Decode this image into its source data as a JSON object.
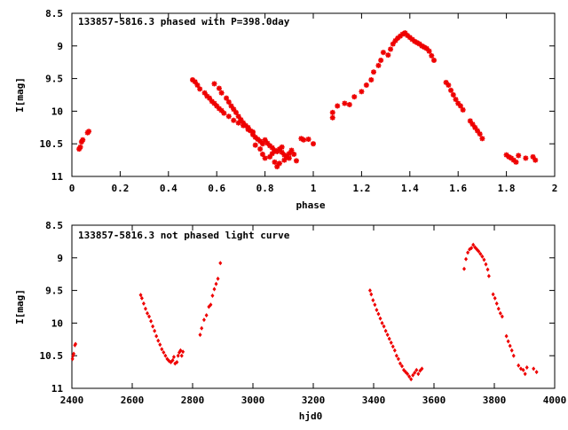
{
  "chart_data": [
    {
      "type": "scatter",
      "title": "133857-5816.3 phased with P=398.0day",
      "xlabel": "phase",
      "ylabel": "I[mag]",
      "xlim": [
        0,
        2
      ],
      "ylim": [
        11,
        8.5
      ],
      "y_inverted": true,
      "x_ticks": [
        0,
        0.2,
        0.4,
        0.6,
        0.8,
        1,
        1.2,
        1.4,
        1.6,
        1.8,
        2
      ],
      "x_tick_labels": [
        "0",
        "0.2",
        "0.4",
        "0.6",
        "0.8",
        "1",
        "1.2",
        "1.4",
        "1.6",
        "1.8",
        "2"
      ],
      "y_ticks": [
        8.5,
        9,
        9.5,
        10,
        10.5,
        11
      ],
      "y_tick_labels": [
        "8.5",
        "9",
        "9.5",
        "10",
        "10.5",
        "11"
      ],
      "grid": false,
      "color": "#ee0000",
      "marker": "asterisk",
      "series": [
        {
          "points": [
            [
              0.03,
              10.58
            ],
            [
              0.035,
              10.55
            ],
            [
              0.04,
              10.47
            ],
            [
              0.045,
              10.44
            ],
            [
              0.065,
              10.33
            ],
            [
              0.07,
              10.31
            ],
            [
              0.5,
              9.52
            ],
            [
              0.51,
              9.55
            ],
            [
              0.52,
              9.6
            ],
            [
              0.53,
              9.66
            ],
            [
              0.55,
              9.72
            ],
            [
              0.56,
              9.77
            ],
            [
              0.57,
              9.8
            ],
            [
              0.58,
              9.85
            ],
            [
              0.59,
              9.88
            ],
            [
              0.6,
              9.92
            ],
            [
              0.61,
              9.96
            ],
            [
              0.62,
              9.99
            ],
            [
              0.63,
              10.03
            ],
            [
              0.59,
              9.58
            ],
            [
              0.61,
              9.65
            ],
            [
              0.62,
              9.72
            ],
            [
              0.64,
              9.8
            ],
            [
              0.65,
              9.86
            ],
            [
              0.66,
              9.92
            ],
            [
              0.67,
              9.97
            ],
            [
              0.68,
              10.02
            ],
            [
              0.69,
              10.08
            ],
            [
              0.7,
              10.13
            ],
            [
              0.71,
              10.18
            ],
            [
              0.72,
              10.22
            ],
            [
              0.73,
              10.25
            ],
            [
              0.65,
              10.08
            ],
            [
              0.67,
              10.14
            ],
            [
              0.69,
              10.18
            ],
            [
              0.71,
              10.22
            ],
            [
              0.73,
              10.28
            ],
            [
              0.75,
              10.32
            ],
            [
              0.74,
              10.3
            ],
            [
              0.75,
              10.36
            ],
            [
              0.76,
              10.4
            ],
            [
              0.77,
              10.43
            ],
            [
              0.78,
              10.46
            ],
            [
              0.79,
              10.5
            ],
            [
              0.8,
              10.44
            ],
            [
              0.81,
              10.49
            ],
            [
              0.82,
              10.53
            ],
            [
              0.83,
              10.56
            ],
            [
              0.84,
              10.6
            ],
            [
              0.85,
              10.62
            ],
            [
              0.86,
              10.58
            ],
            [
              0.87,
              10.63
            ],
            [
              0.88,
              10.67
            ],
            [
              0.89,
              10.7
            ],
            [
              0.9,
              10.65
            ],
            [
              0.91,
              10.6
            ],
            [
              0.78,
              10.58
            ],
            [
              0.79,
              10.66
            ],
            [
              0.8,
              10.72
            ],
            [
              0.82,
              10.7
            ],
            [
              0.84,
              10.78
            ],
            [
              0.85,
              10.85
            ],
            [
              0.86,
              10.8
            ],
            [
              0.88,
              10.75
            ],
            [
              0.9,
              10.72
            ],
            [
              0.92,
              10.66
            ],
            [
              0.93,
              10.76
            ],
            [
              0.95,
              10.42
            ],
            [
              0.96,
              10.44
            ],
            [
              0.98,
              10.43
            ],
            [
              1.0,
              10.5
            ],
            [
              0.76,
              10.52
            ],
            [
              0.83,
              10.65
            ],
            [
              0.87,
              10.55
            ],
            [
              1.08,
              10.02
            ],
            [
              1.08,
              10.1
            ],
            [
              1.1,
              9.92
            ],
            [
              1.13,
              9.88
            ],
            [
              1.15,
              9.9
            ],
            [
              1.17,
              9.78
            ],
            [
              1.2,
              9.7
            ],
            [
              1.22,
              9.6
            ],
            [
              1.24,
              9.52
            ],
            [
              1.25,
              9.4
            ],
            [
              1.27,
              9.3
            ],
            [
              1.28,
              9.22
            ],
            [
              1.29,
              9.1
            ],
            [
              1.31,
              9.14
            ],
            [
              1.32,
              9.05
            ],
            [
              1.33,
              8.97
            ],
            [
              1.34,
              8.92
            ],
            [
              1.35,
              8.88
            ],
            [
              1.36,
              8.85
            ],
            [
              1.37,
              8.82
            ],
            [
              1.38,
              8.8
            ],
            [
              1.39,
              8.84
            ],
            [
              1.4,
              8.87
            ],
            [
              1.41,
              8.9
            ],
            [
              1.42,
              8.93
            ],
            [
              1.43,
              8.95
            ],
            [
              1.44,
              8.97
            ],
            [
              1.45,
              9.0
            ],
            [
              1.46,
              9.02
            ],
            [
              1.47,
              9.04
            ],
            [
              1.48,
              9.08
            ],
            [
              1.49,
              9.15
            ],
            [
              1.5,
              9.22
            ],
            [
              1.55,
              9.56
            ],
            [
              1.56,
              9.6
            ],
            [
              1.57,
              9.68
            ],
            [
              1.58,
              9.75
            ],
            [
              1.59,
              9.82
            ],
            [
              1.6,
              9.88
            ],
            [
              1.61,
              9.92
            ],
            [
              1.62,
              9.98
            ],
            [
              1.65,
              10.15
            ],
            [
              1.66,
              10.2
            ],
            [
              1.67,
              10.25
            ],
            [
              1.68,
              10.3
            ],
            [
              1.69,
              10.35
            ],
            [
              1.7,
              10.42
            ],
            [
              1.8,
              10.67
            ],
            [
              1.81,
              10.7
            ],
            [
              1.82,
              10.72
            ],
            [
              1.83,
              10.75
            ],
            [
              1.84,
              10.78
            ],
            [
              1.85,
              10.68
            ],
            [
              1.88,
              10.72
            ],
            [
              1.91,
              10.7
            ],
            [
              1.92,
              10.75
            ]
          ]
        }
      ]
    },
    {
      "type": "scatter",
      "title": "133857-5816.3 not phased light curve",
      "xlabel": "hjd0",
      "ylabel": "I[mag]",
      "xlim": [
        2400,
        4000
      ],
      "ylim": [
        11,
        8.5
      ],
      "y_inverted": true,
      "x_ticks": [
        2400,
        2600,
        2800,
        3000,
        3200,
        3400,
        3600,
        3800,
        4000
      ],
      "x_tick_labels": [
        "2400",
        "2600",
        "2800",
        "3000",
        "3200",
        "3400",
        "3600",
        "3800",
        "4000"
      ],
      "y_ticks": [
        8.5,
        9,
        9.5,
        10,
        10.5,
        11
      ],
      "y_tick_labels": [
        "8.5",
        "9",
        "9.5",
        "10",
        "10.5",
        "11"
      ],
      "grid": false,
      "color": "#ee0000",
      "marker": "diamond",
      "series": [
        {
          "points": [
            [
              2402,
              10.55
            ],
            [
              2404,
              10.5
            ],
            [
              2406,
              10.47
            ],
            [
              2410,
              10.34
            ],
            [
              2412,
              10.32
            ],
            [
              2628,
              9.57
            ],
            [
              2632,
              9.62
            ],
            [
              2638,
              9.7
            ],
            [
              2644,
              9.78
            ],
            [
              2650,
              9.85
            ],
            [
              2656,
              9.9
            ],
            [
              2662,
              9.97
            ],
            [
              2668,
              10.05
            ],
            [
              2674,
              10.12
            ],
            [
              2680,
              10.2
            ],
            [
              2686,
              10.27
            ],
            [
              2692,
              10.33
            ],
            [
              2698,
              10.4
            ],
            [
              2704,
              10.45
            ],
            [
              2710,
              10.5
            ],
            [
              2716,
              10.55
            ],
            [
              2722,
              10.58
            ],
            [
              2728,
              10.6
            ],
            [
              2734,
              10.57
            ],
            [
              2738,
              10.52
            ],
            [
              2742,
              10.62
            ],
            [
              2748,
              10.6
            ],
            [
              2752,
              10.5
            ],
            [
              2756,
              10.45
            ],
            [
              2760,
              10.42
            ],
            [
              2764,
              10.5
            ],
            [
              2768,
              10.44
            ],
            [
              2825,
              10.18
            ],
            [
              2830,
              10.08
            ],
            [
              2838,
              9.95
            ],
            [
              2846,
              9.88
            ],
            [
              2854,
              9.75
            ],
            [
              2860,
              9.72
            ],
            [
              2866,
              9.58
            ],
            [
              2872,
              9.48
            ],
            [
              2878,
              9.4
            ],
            [
              2884,
              9.32
            ],
            [
              2892,
              9.08
            ],
            [
              3388,
              9.5
            ],
            [
              3392,
              9.56
            ],
            [
              3398,
              9.65
            ],
            [
              3404,
              9.72
            ],
            [
              3410,
              9.8
            ],
            [
              3416,
              9.86
            ],
            [
              3422,
              9.93
            ],
            [
              3428,
              10.0
            ],
            [
              3434,
              10.05
            ],
            [
              3440,
              10.12
            ],
            [
              3446,
              10.18
            ],
            [
              3452,
              10.24
            ],
            [
              3458,
              10.3
            ],
            [
              3464,
              10.36
            ],
            [
              3470,
              10.42
            ],
            [
              3476,
              10.5
            ],
            [
              3482,
              10.55
            ],
            [
              3488,
              10.62
            ],
            [
              3494,
              10.66
            ],
            [
              3500,
              10.72
            ],
            [
              3506,
              10.75
            ],
            [
              3512,
              10.78
            ],
            [
              3518,
              10.82
            ],
            [
              3524,
              10.86
            ],
            [
              3530,
              10.8
            ],
            [
              3536,
              10.76
            ],
            [
              3542,
              10.72
            ],
            [
              3548,
              10.78
            ],
            [
              3554,
              10.73
            ],
            [
              3560,
              10.7
            ],
            [
              3700,
              9.17
            ],
            [
              3706,
              9.02
            ],
            [
              3712,
              8.92
            ],
            [
              3718,
              8.87
            ],
            [
              3724,
              8.85
            ],
            [
              3730,
              8.8
            ],
            [
              3736,
              8.84
            ],
            [
              3742,
              8.87
            ],
            [
              3748,
              8.9
            ],
            [
              3754,
              8.94
            ],
            [
              3760,
              8.98
            ],
            [
              3766,
              9.03
            ],
            [
              3772,
              9.1
            ],
            [
              3778,
              9.18
            ],
            [
              3782,
              9.28
            ],
            [
              3796,
              9.56
            ],
            [
              3802,
              9.62
            ],
            [
              3808,
              9.7
            ],
            [
              3814,
              9.78
            ],
            [
              3820,
              9.85
            ],
            [
              3826,
              9.9
            ],
            [
              3840,
              10.2
            ],
            [
              3846,
              10.28
            ],
            [
              3852,
              10.35
            ],
            [
              3858,
              10.42
            ],
            [
              3864,
              10.5
            ],
            [
              3880,
              10.65
            ],
            [
              3888,
              10.7
            ],
            [
              3896,
              10.72
            ],
            [
              3902,
              10.78
            ],
            [
              3908,
              10.68
            ],
            [
              3930,
              10.7
            ],
            [
              3940,
              10.75
            ]
          ]
        }
      ]
    }
  ]
}
